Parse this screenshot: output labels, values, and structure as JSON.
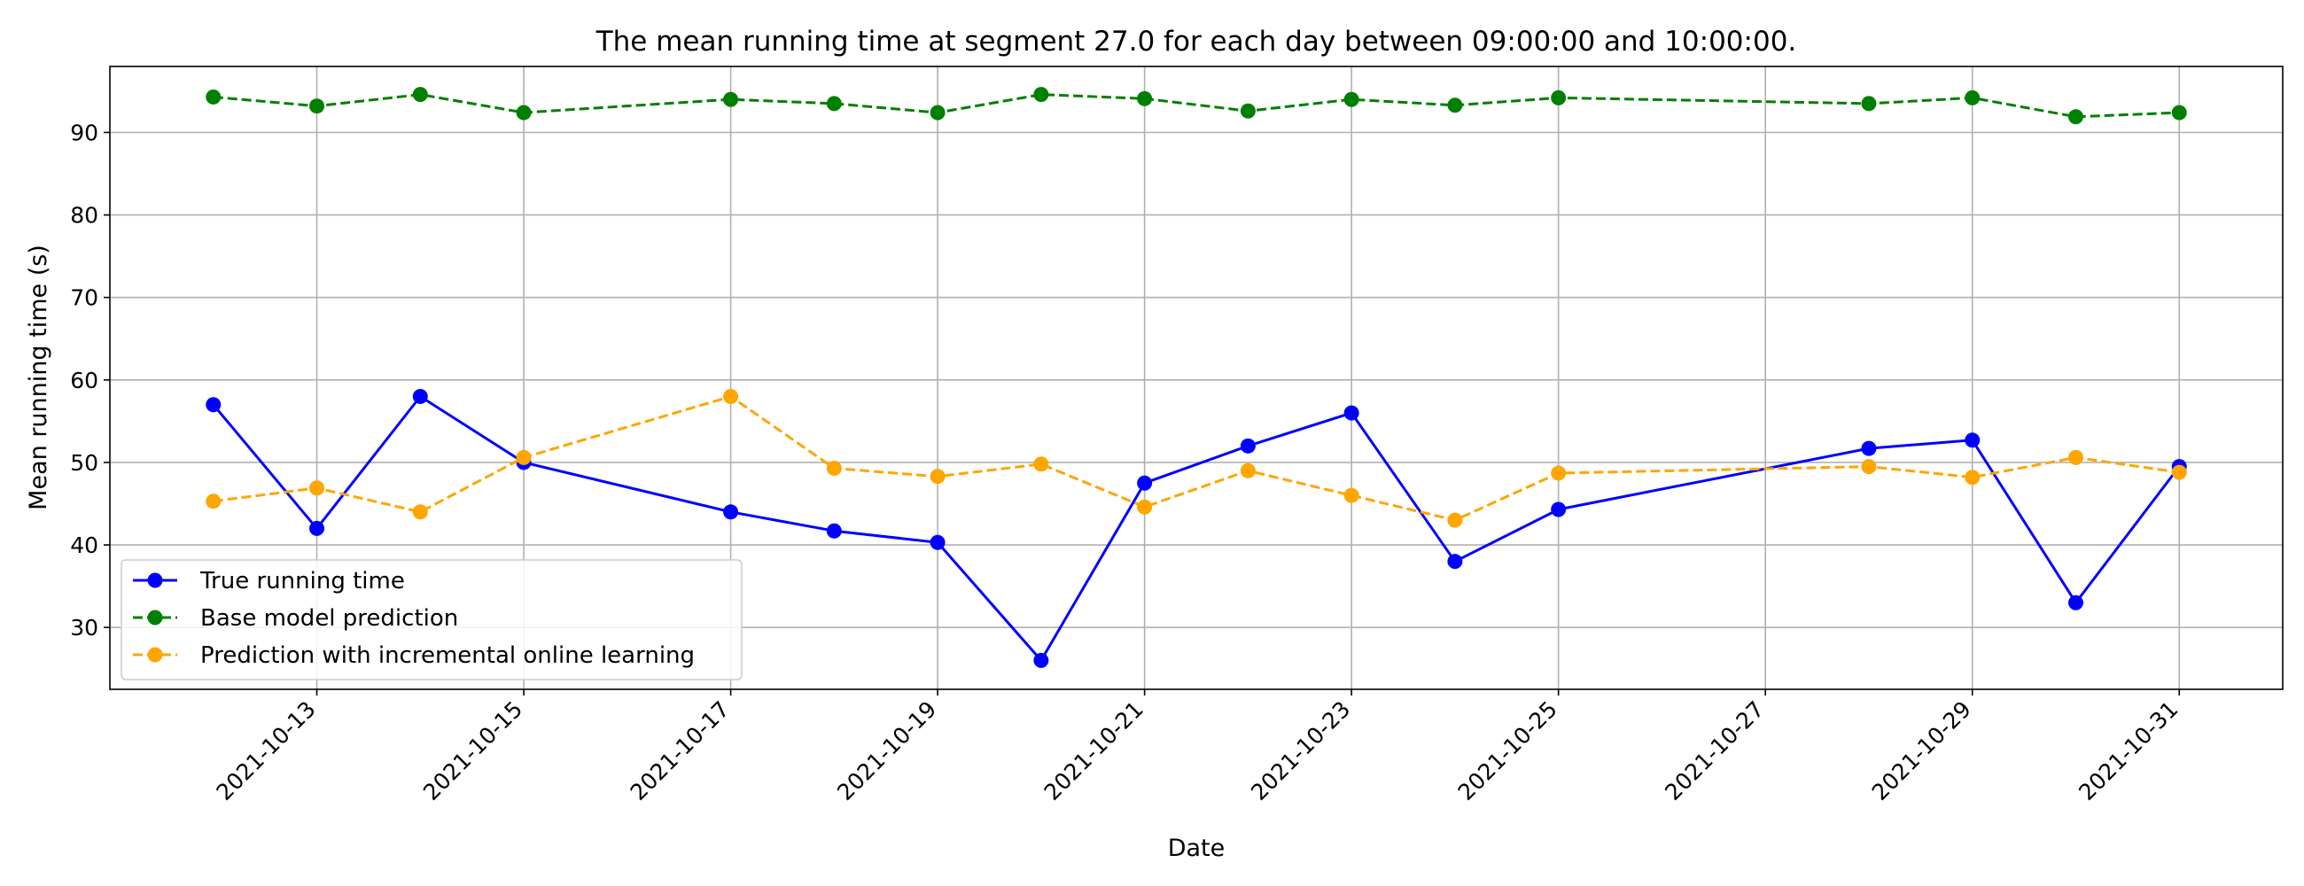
{
  "chart_data": {
    "type": "line",
    "title": "The mean running time at segment 27.0 for each day between 09:00:00 and 10:00:00.",
    "xlabel": "Date",
    "ylabel": "Mean running time (s)",
    "ylim": [
      22.5,
      98
    ],
    "yticks": [
      30,
      40,
      50,
      60,
      70,
      80,
      90
    ],
    "xlim": [
      "2021-10-11",
      "2021-11-01"
    ],
    "xticks": [
      "2021-10-13",
      "2021-10-15",
      "2021-10-17",
      "2021-10-19",
      "2021-10-21",
      "2021-10-23",
      "2021-10-25",
      "2021-10-27",
      "2021-10-29",
      "2021-10-31"
    ],
    "grid": true,
    "legend_position": "lower-left",
    "x": [
      "2021-10-12",
      "2021-10-13",
      "2021-10-14",
      "2021-10-15",
      "2021-10-17",
      "2021-10-18",
      "2021-10-19",
      "2021-10-20",
      "2021-10-21",
      "2021-10-22",
      "2021-10-23",
      "2021-10-24",
      "2021-10-25",
      "2021-10-28",
      "2021-10-29",
      "2021-10-30",
      "2021-10-31"
    ],
    "series": [
      {
        "name": "True running time",
        "color": "#0000ff",
        "style": "solid",
        "values": [
          57.0,
          42.0,
          58.0,
          50.0,
          44.0,
          41.7,
          40.3,
          26.0,
          47.5,
          52.0,
          56.0,
          38.0,
          44.3,
          51.7,
          52.7,
          33.0,
          49.5
        ]
      },
      {
        "name": "Base model prediction",
        "color": "#008000",
        "style": "dashed",
        "values": [
          94.3,
          93.2,
          94.6,
          92.4,
          94.0,
          93.5,
          92.4,
          94.6,
          94.1,
          92.6,
          94.0,
          93.3,
          94.2,
          93.5,
          94.2,
          91.9,
          92.4
        ]
      },
      {
        "name": "Prediction with incremental online learning",
        "color": "#ffa500",
        "style": "dashed",
        "values": [
          45.3,
          46.9,
          44.0,
          50.6,
          58.0,
          49.3,
          48.3,
          49.8,
          44.6,
          49.0,
          46.0,
          43.0,
          48.7,
          49.5,
          48.2,
          50.6,
          48.8
        ]
      }
    ]
  }
}
